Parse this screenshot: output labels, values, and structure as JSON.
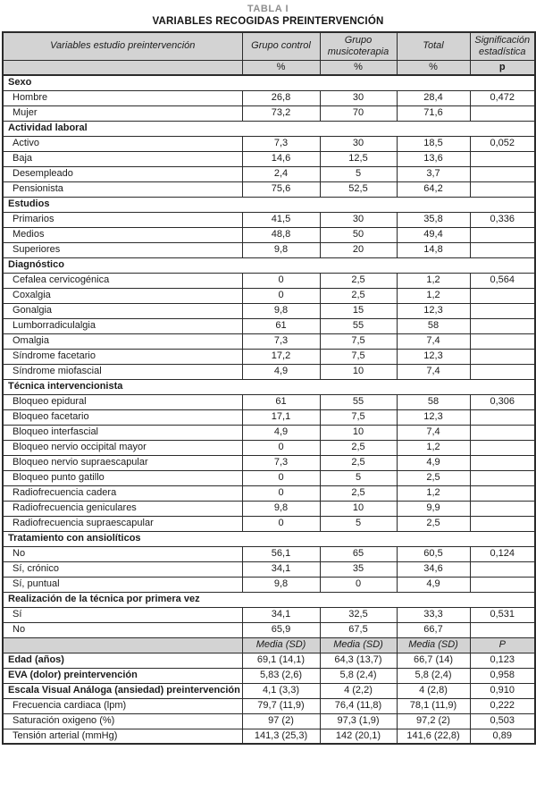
{
  "caption": {
    "number": "TABLA I",
    "title": "VARIABLES RECOGIDAS PREINTERVENCIÓN"
  },
  "colors": {
    "header_bg": "#d3d3d3",
    "border": "#2b2b2b",
    "caption_number": "#8e8e8e",
    "text": "#1b1b1b"
  },
  "table": {
    "header": {
      "columns": [
        "Variables estudio preintervención",
        "Grupo control",
        "Grupo musicoterapia",
        "Total",
        "Significación estadística"
      ],
      "units": [
        "",
        "%",
        "%",
        "%",
        "p"
      ]
    },
    "rows": [
      {
        "type": "section",
        "label": "Sexo"
      },
      {
        "type": "data",
        "label": "Hombre",
        "values": [
          "26,8",
          "30",
          "28,4",
          "0,472"
        ]
      },
      {
        "type": "data",
        "label": "Mujer",
        "values": [
          "73,2",
          "70",
          "71,6",
          ""
        ]
      },
      {
        "type": "section",
        "label": "Actividad laboral"
      },
      {
        "type": "data",
        "label": "Activo",
        "values": [
          "7,3",
          "30",
          "18,5",
          "0,052"
        ]
      },
      {
        "type": "data",
        "label": "Baja",
        "values": [
          "14,6",
          "12,5",
          "13,6",
          ""
        ]
      },
      {
        "type": "data",
        "label": "Desempleado",
        "values": [
          "2,4",
          "5",
          "3,7",
          ""
        ]
      },
      {
        "type": "data",
        "label": "Pensionista",
        "values": [
          "75,6",
          "52,5",
          "64,2",
          ""
        ]
      },
      {
        "type": "section",
        "label": "Estudios"
      },
      {
        "type": "data",
        "label": "Primarios",
        "values": [
          "41,5",
          "30",
          "35,8",
          "0,336"
        ]
      },
      {
        "type": "data",
        "label": "Medios",
        "values": [
          "48,8",
          "50",
          "49,4",
          ""
        ]
      },
      {
        "type": "data",
        "label": "Superiores",
        "values": [
          "9,8",
          "20",
          "14,8",
          ""
        ]
      },
      {
        "type": "section",
        "label": "Diagnóstico"
      },
      {
        "type": "data",
        "label": "Cefalea cervicogénica",
        "values": [
          "0",
          "2,5",
          "1,2",
          "0,564"
        ]
      },
      {
        "type": "data",
        "label": "Coxalgia",
        "values": [
          "0",
          "2,5",
          "1,2",
          ""
        ]
      },
      {
        "type": "data",
        "label": "Gonalgia",
        "values": [
          "9,8",
          "15",
          "12,3",
          ""
        ]
      },
      {
        "type": "data",
        "label": "Lumborradiculalgia",
        "values": [
          "61",
          "55",
          "58",
          ""
        ]
      },
      {
        "type": "data",
        "label": "Omalgia",
        "values": [
          "7,3",
          "7,5",
          "7,4",
          ""
        ]
      },
      {
        "type": "data",
        "label": "Síndrome facetario",
        "values": [
          "17,2",
          "7,5",
          "12,3",
          ""
        ]
      },
      {
        "type": "data",
        "label": "Síndrome miofascial",
        "values": [
          "4,9",
          "10",
          "7,4",
          ""
        ]
      },
      {
        "type": "section",
        "label": "Técnica intervencionista"
      },
      {
        "type": "data",
        "label": "Bloqueo epidural",
        "values": [
          "61",
          "55",
          "58",
          "0,306"
        ]
      },
      {
        "type": "data",
        "label": "Bloqueo facetario",
        "values": [
          "17,1",
          "7,5",
          "12,3",
          ""
        ]
      },
      {
        "type": "data",
        "label": "Bloqueo interfascial",
        "values": [
          "4,9",
          "10",
          "7,4",
          ""
        ]
      },
      {
        "type": "data",
        "label": "Bloqueo nervio occipital mayor",
        "values": [
          "0",
          "2,5",
          "1,2",
          ""
        ]
      },
      {
        "type": "data",
        "label": "Bloqueo nervio supraescapular",
        "values": [
          "7,3",
          "2,5",
          "4,9",
          ""
        ]
      },
      {
        "type": "data",
        "label": "Bloqueo punto gatillo",
        "values": [
          "0",
          "5",
          "2,5",
          ""
        ]
      },
      {
        "type": "data",
        "label": "Radiofrecuencia cadera",
        "values": [
          "0",
          "2,5",
          "1,2",
          ""
        ]
      },
      {
        "type": "data",
        "label": "Radiofrecuencia geniculares",
        "values": [
          "9,8",
          "10",
          "9,9",
          ""
        ]
      },
      {
        "type": "data",
        "label": "Radiofrecuencia supraescapular",
        "values": [
          "0",
          "5",
          "2,5",
          ""
        ]
      },
      {
        "type": "section",
        "label": "Tratamiento con ansiolíticos"
      },
      {
        "type": "data",
        "label": "No",
        "values": [
          "56,1",
          "65",
          "60,5",
          "0,124"
        ]
      },
      {
        "type": "data",
        "label": "Sí, crónico",
        "values": [
          "34,1",
          "35",
          "34,6",
          ""
        ]
      },
      {
        "type": "data",
        "label": "Sí, puntual",
        "values": [
          "9,8",
          "0",
          "4,9",
          ""
        ]
      },
      {
        "type": "section",
        "label": "Realización de la técnica por primera vez"
      },
      {
        "type": "data",
        "label": "Sí",
        "values": [
          "34,1",
          "32,5",
          "33,3",
          "0,531"
        ]
      },
      {
        "type": "data",
        "label": "No",
        "values": [
          "65,9",
          "67,5",
          "66,7",
          ""
        ]
      },
      {
        "type": "subheader",
        "cells": [
          "",
          "Media (SD)",
          "Media (SD)",
          "Media (SD)",
          "P"
        ]
      },
      {
        "type": "data",
        "bold": true,
        "label": "Edad (años)",
        "values": [
          "69,1 (14,1)",
          "64,3 (13,7)",
          "66,7 (14)",
          "0,123"
        ]
      },
      {
        "type": "data",
        "bold": true,
        "label": "EVA (dolor) preintervención",
        "values": [
          "5,83 (2,6)",
          "5,8 (2,4)",
          "5,8 (2,4)",
          "0,958"
        ]
      },
      {
        "type": "data",
        "bold": true,
        "label": "Escala Visual Análoga (ansiedad) preintervención",
        "values": [
          "4,1 (3,3)",
          "4 (2,2)",
          "4 (2,8)",
          "0,910"
        ]
      },
      {
        "type": "data",
        "label": "Frecuencia cardiaca (lpm)",
        "values": [
          "79,7 (11,9)",
          "76,4 (11,8)",
          "78,1 (11,9)",
          "0,222"
        ]
      },
      {
        "type": "data",
        "label": "Saturación oxigeno (%)",
        "values": [
          "97 (2)",
          "97,3 (1,9)",
          "97,2 (2)",
          "0,503"
        ]
      },
      {
        "type": "data",
        "label": "Tensión arterial (mmHg)",
        "values": [
          "141,3 (25,3)",
          "142 (20,1)",
          "141,6 (22,8)",
          "0,89"
        ]
      }
    ]
  }
}
